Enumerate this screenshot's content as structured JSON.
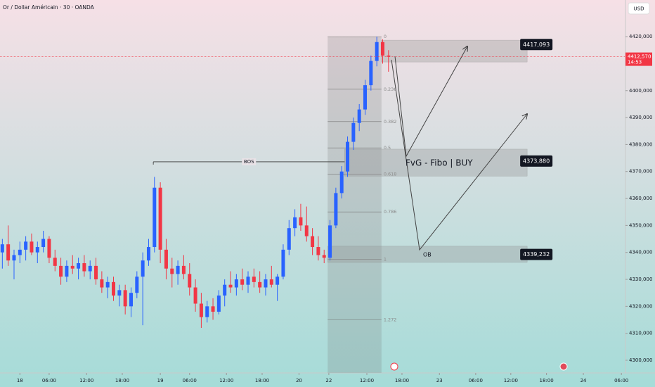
{
  "chart_data": {
    "type": "candlestick",
    "title": "Or / Dollar Américain · 30 · OANDA",
    "currency": "USD",
    "up_color": "#2962ff",
    "down_color": "#f23645",
    "xlim": [
      -3.4,
      103.5
    ],
    "xticks": [
      {
        "value": 0,
        "label": "18"
      },
      {
        "value": 5,
        "label": "06:00"
      },
      {
        "value": 11.4,
        "label": "12:00"
      },
      {
        "value": 17.5,
        "label": "18:00"
      },
      {
        "value": 24,
        "label": "19"
      },
      {
        "value": 29,
        "label": "06:00"
      },
      {
        "value": 35.3,
        "label": "12:00"
      },
      {
        "value": 41.4,
        "label": "18:00"
      },
      {
        "value": 47.7,
        "label": "20"
      },
      {
        "value": 52.8,
        "label": "22"
      },
      {
        "value": 59.3,
        "label": "12:00"
      },
      {
        "value": 65.3,
        "label": "18:00"
      },
      {
        "value": 71.7,
        "label": "23"
      },
      {
        "value": 77.9,
        "label": "06:00"
      },
      {
        "value": 83.9,
        "label": "12:00"
      },
      {
        "value": 90,
        "label": "18:00"
      },
      {
        "value": 96.3,
        "label": "24"
      },
      {
        "value": 102.8,
        "label": "06:00"
      }
    ],
    "ylim": [
      4295.3,
      4433.6
    ],
    "yticks": [
      {
        "value": 4300,
        "label": "4300,000"
      },
      {
        "value": 4310,
        "label": "4310,000"
      },
      {
        "value": 4320,
        "label": "4320,000"
      },
      {
        "value": 4330,
        "label": "4330,000"
      },
      {
        "value": 4340,
        "label": "4340,000"
      },
      {
        "value": 4350,
        "label": "4350,000"
      },
      {
        "value": 4360,
        "label": "4360,000"
      },
      {
        "value": 4370,
        "label": "4370,000"
      },
      {
        "value": 4380,
        "label": "4380,000"
      },
      {
        "value": 4390,
        "label": "4390,000"
      },
      {
        "value": 4400,
        "label": "4400,000"
      },
      {
        "value": 4410,
        "label": "4410,000"
      },
      {
        "value": 4420,
        "label": "4420,000"
      }
    ],
    "candles": {
      "x": [
        -3,
        -2,
        -1,
        0,
        1,
        2,
        3,
        4,
        5,
        6,
        7,
        8,
        9,
        10,
        11,
        12,
        13,
        14,
        15,
        16,
        17,
        18,
        19,
        20,
        21,
        22,
        23,
        24,
        25,
        26,
        27,
        28,
        29,
        30,
        31,
        32,
        33,
        34,
        35,
        36,
        37,
        38,
        39,
        40,
        41,
        42,
        43,
        44,
        45,
        46,
        47,
        48,
        49,
        50,
        51,
        52,
        53,
        54,
        55,
        56,
        57,
        58,
        59,
        60,
        61,
        62,
        63
      ],
      "open": [
        4340,
        4343,
        4337,
        4339,
        4341,
        4344,
        4340,
        4342,
        4345,
        4338,
        4335,
        4331,
        4335,
        4334,
        4336,
        4333,
        4335,
        4330,
        4327,
        4329,
        4324,
        4326,
        4320,
        4325,
        4331,
        4337,
        4342,
        4364,
        4341,
        4334,
        4332,
        4335,
        4332,
        4327,
        4321,
        4316,
        4320,
        4318,
        4324,
        4328,
        4327,
        4330,
        4328,
        4331,
        4329,
        4327,
        4330,
        4328,
        4331,
        4341,
        4349,
        4353,
        4350,
        4346,
        4342,
        4339,
        4338,
        4350,
        4362,
        4370,
        4381,
        4388,
        4393,
        4402,
        4411,
        4418,
        4413
      ],
      "high": [
        4345,
        4350,
        4341,
        4344,
        4346,
        4347,
        4344,
        4348,
        4346,
        4341,
        4338,
        4337,
        4339,
        4338,
        4339,
        4337,
        4338,
        4333,
        4331,
        4331,
        4328,
        4328,
        4327,
        4333,
        4340,
        4345,
        4368,
        4366,
        4345,
        4338,
        4337,
        4339,
        4336,
        4330,
        4325,
        4322,
        4323,
        4326,
        4330,
        4333,
        4332,
        4334,
        4333,
        4334,
        4333,
        4332,
        4335,
        4332,
        4343,
        4352,
        4356,
        4358,
        4357,
        4349,
        4346,
        4341,
        4352,
        4364,
        4372,
        4383,
        4390,
        4395,
        4404,
        4413,
        4420,
        4419,
        4415
      ],
      "low": [
        4334,
        4335,
        4330,
        4336,
        4337,
        4339,
        4336,
        4340,
        4336,
        4333,
        4328,
        4329,
        4332,
        4330,
        4331,
        4330,
        4328,
        4325,
        4323,
        4322,
        4320,
        4317,
        4316,
        4323,
        4313,
        4335,
        4340,
        4336,
        4330,
        4327,
        4328,
        4330,
        4324,
        4318,
        4312,
        4314,
        4315,
        4317,
        4320,
        4325,
        4324,
        4326,
        4325,
        4327,
        4325,
        4324,
        4327,
        4322,
        4330,
        4339,
        4346,
        4348,
        4344,
        4339,
        4337,
        4336,
        4337,
        4349,
        4360,
        4368,
        4378,
        4385,
        4391,
        4400,
        4409,
        4410,
        4407
      ],
      "close": [
        4343,
        4337,
        4339,
        4341,
        4344,
        4340,
        4342,
        4345,
        4338,
        4335,
        4331,
        4335,
        4334,
        4336,
        4333,
        4335,
        4330,
        4327,
        4329,
        4324,
        4326,
        4320,
        4325,
        4331,
        4337,
        4342,
        4364,
        4341,
        4334,
        4332,
        4335,
        4332,
        4327,
        4321,
        4316,
        4320,
        4318,
        4324,
        4328,
        4327,
        4330,
        4328,
        4331,
        4329,
        4327,
        4330,
        4328,
        4331,
        4341,
        4349,
        4353,
        4350,
        4346,
        4342,
        4339,
        4338,
        4350,
        4362,
        4370,
        4381,
        4388,
        4393,
        4402,
        4411,
        4418,
        4413,
        4412.57
      ]
    },
    "current_price": {
      "value": 4412.57,
      "label": "4412,570",
      "timer": "14:53"
    },
    "fib": {
      "x_start": 52.6,
      "x_end": 61.8,
      "levels": [
        {
          "label": "0",
          "price": 4420
        },
        {
          "label": "0.236",
          "price": 4400.5
        },
        {
          "label": "0.382",
          "price": 4388.5
        },
        {
          "label": "0.5",
          "price": 4378.75
        },
        {
          "label": "0.618",
          "price": 4369
        },
        {
          "label": "0.786",
          "price": 4355
        },
        {
          "label": "1",
          "price": 4337.5
        },
        {
          "label": "1.272",
          "price": 4315
        }
      ]
    },
    "zones": [
      {
        "x_start": 61.8,
        "x_end": 86.7,
        "top": 4418.7,
        "bottom": 4410.6,
        "level": 4417.093,
        "label": "4417,093"
      },
      {
        "x_start": 55.5,
        "x_end": 86.7,
        "top": 4378.3,
        "bottom": 4368.3,
        "level": 4373.88,
        "label": "4373,880"
      },
      {
        "x_start": 52.6,
        "x_end": 86.7,
        "top": 4342.3,
        "bottom": 4336.3,
        "level": 4339.232,
        "label": "4339,232"
      }
    ],
    "bos": {
      "label": "BOS",
      "price": 4373.6,
      "x_start": 22.8,
      "x_end": 55.5
    },
    "annotations": [
      "FvG - Fibo | BUY",
      "OB"
    ]
  }
}
